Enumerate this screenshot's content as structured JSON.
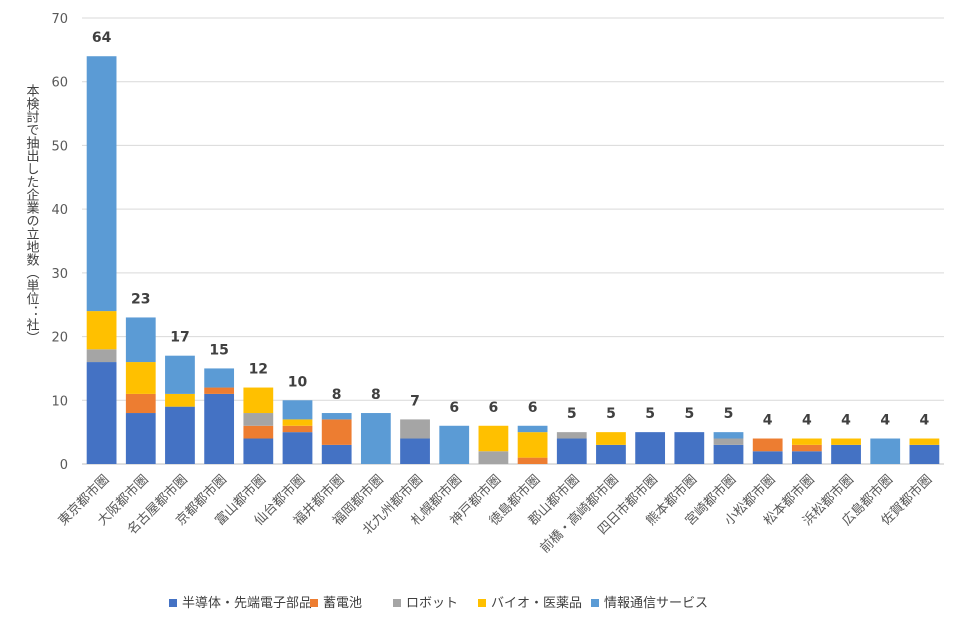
{
  "chart_data": {
    "type": "bar",
    "stacked": true,
    "title": "",
    "xlabel": "",
    "ylabel": "本検討で抽出した企業の立地数（単位：社）",
    "ylim": [
      0,
      70
    ],
    "yticks": [
      0,
      10,
      20,
      30,
      40,
      50,
      60,
      70
    ],
    "grid": true,
    "legend_position": "bottom",
    "categories": [
      "東京都市圏",
      "大阪都市圏",
      "名古屋都市圏",
      "京都都市圏",
      "富山都市圏",
      "仙台都市圏",
      "福井都市圏",
      "福岡都市圏",
      "北九州都市圏",
      "札幌都市圏",
      "神戸都市圏",
      "徳島都市圏",
      "郡山都市圏",
      "前橋・高崎都市圏",
      "四日市都市圏",
      "熊本都市圏",
      "宮崎都市圏",
      "小松都市圏",
      "松本都市圏",
      "浜松都市圏",
      "広島都市圏",
      "佐賀都市圏"
    ],
    "totals": [
      64,
      23,
      17,
      15,
      12,
      10,
      8,
      8,
      7,
      6,
      6,
      6,
      5,
      5,
      5,
      5,
      5,
      4,
      4,
      4,
      4,
      4
    ],
    "series": [
      {
        "name": "半導体・先端電子部品",
        "color": "#4472C4",
        "values": [
          16,
          8,
          9,
          11,
          4,
          5,
          3,
          0,
          4,
          0,
          0,
          0,
          4,
          3,
          5,
          5,
          3,
          2,
          2,
          3,
          0,
          3
        ]
      },
      {
        "name": "蓄電池",
        "color": "#ED7D31",
        "values": [
          0,
          3,
          0,
          1,
          2,
          1,
          4,
          0,
          0,
          0,
          0,
          1,
          0,
          0,
          0,
          0,
          0,
          2,
          1,
          0,
          0,
          0
        ]
      },
      {
        "name": "ロボット",
        "color": "#A5A5A5",
        "values": [
          2,
          0,
          0,
          0,
          2,
          0,
          0,
          0,
          3,
          0,
          2,
          0,
          1,
          0,
          0,
          0,
          1,
          0,
          0,
          0,
          0,
          0
        ]
      },
      {
        "name": "バイオ・医薬品",
        "color": "#FFC000",
        "values": [
          6,
          5,
          2,
          0,
          4,
          1,
          0,
          0,
          0,
          0,
          4,
          4,
          0,
          2,
          0,
          0,
          0,
          0,
          1,
          1,
          0,
          1
        ]
      },
      {
        "name": "情報通信サービス",
        "color": "#5B9BD5",
        "values": [
          40,
          7,
          6,
          3,
          0,
          3,
          1,
          8,
          0,
          6,
          0,
          1,
          0,
          0,
          0,
          0,
          1,
          0,
          0,
          0,
          4,
          0
        ]
      }
    ]
  }
}
